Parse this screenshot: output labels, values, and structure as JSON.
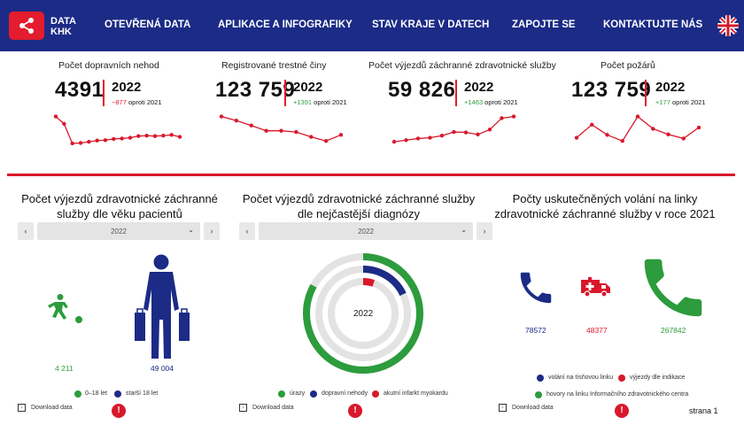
{
  "header": {
    "logo_line1": "DATA",
    "logo_line2": "KHK",
    "nav": [
      "OTEVŘENÁ DATA",
      "APLIKACE A INFOGRAFIKY",
      "STAV KRAJE V DATECH",
      "ZAPOJTE SE",
      "KONTAKTUJTE NÁS"
    ],
    "language_icon": "uk-flag-icon"
  },
  "kpis": [
    {
      "title": "Počet dopravních nehod",
      "value": "4391",
      "year": "2022",
      "delta": "−877",
      "delta_suffix": " oproti 2021",
      "delta_color": "#e31c2e",
      "trend": [
        9.0,
        7.2,
        2.4,
        2.5,
        2.8,
        3.1,
        3.2,
        3.5,
        3.6,
        3.8,
        4.2,
        4.3,
        4.2,
        4.3,
        4.5,
        4.0
      ]
    },
    {
      "title": "Registrované trestné činy",
      "value": "123 759",
      "year": "2022",
      "delta": "+1391",
      "delta_suffix": " oproti 2021",
      "delta_color": "#2c9c3c",
      "trend": [
        9.0,
        8.0,
        6.8,
        5.5,
        5.5,
        5.2,
        4.0,
        3.0,
        4.5
      ]
    },
    {
      "title": "Počet výjezdů záchranné zdravotnické služby",
      "value": "59 826",
      "year": "2022",
      "delta": "+1463",
      "delta_suffix": " oproti 2021",
      "delta_color": "#2c9c3c",
      "trend": [
        2.8,
        3.2,
        3.6,
        3.8,
        4.3,
        5.2,
        5.1,
        4.6,
        5.8,
        8.6,
        9.0
      ]
    },
    {
      "title": "Počet požárů",
      "value": "123 759",
      "year": "2022",
      "delta": "+177",
      "delta_suffix": " oproti 2021",
      "delta_color": "#2c9c3c",
      "trend": [
        3.8,
        7.0,
        4.5,
        3.0,
        9.0,
        6.0,
        4.6,
        3.6,
        6.3
      ]
    }
  ],
  "panels": {
    "age": {
      "title": "Počet výjezdů zdravotnické záchranné služby dle věku pacientů",
      "selector": "2022",
      "child_value": "4 211",
      "adult_value": "49 004",
      "legend": [
        "0–18 let",
        "starší 18 let"
      ],
      "colors": [
        "#2c9c3c",
        "#1b2b86"
      ]
    },
    "diagnosis": {
      "title": "Počet výjezdů zdravotnické záchranné služby dle nejčastější diagnózy",
      "selector": "2022",
      "center_label": "2022",
      "legend": [
        "úrazy",
        "dopravní nehody",
        "akutní infarkt myokardu"
      ],
      "colors": [
        "#2c9c3c",
        "#1b2b86",
        "#d9182b"
      ]
    },
    "calls": {
      "title": "Počty uskutečněných volání na linky zdravotnické záchranné služby v roce 2021",
      "values": [
        "78572",
        "48377",
        "267842"
      ],
      "legend": [
        "volání na tísňovou linku",
        "výjezdy dle indikace",
        "hovory na linku Informačního zdravotnického centra"
      ],
      "colors": [
        "#1b2b86",
        "#d9182b",
        "#2c9c3c"
      ]
    },
    "download_label": "Download data",
    "page_label": "strana 1"
  }
}
